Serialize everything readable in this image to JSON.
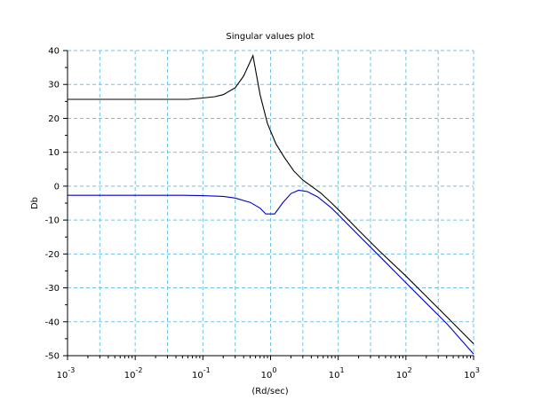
{
  "chart_data": {
    "type": "line",
    "title": "Singular values plot",
    "xlabel": "(Rd/sec)",
    "ylabel": "Db",
    "x_scale": "log",
    "xlim": [
      0.001,
      1000
    ],
    "ylim": [
      -50,
      40
    ],
    "grid": true,
    "x_ticks": [
      {
        "base": "10",
        "exp": "-3"
      },
      {
        "base": "10",
        "exp": "-2"
      },
      {
        "base": "10",
        "exp": "-1"
      },
      {
        "base": "10",
        "exp": "0"
      },
      {
        "base": "10",
        "exp": "1"
      },
      {
        "base": "10",
        "exp": "2"
      },
      {
        "base": "10",
        "exp": "3"
      }
    ],
    "y_ticks": [
      "40",
      "30",
      "20",
      "10",
      "0",
      "-10",
      "-20",
      "-30",
      "-40",
      "-50"
    ],
    "series": [
      {
        "color": "#000000",
        "points": [
          [
            0.001,
            25.6
          ],
          [
            0.003,
            25.6
          ],
          [
            0.01,
            25.6
          ],
          [
            0.03,
            25.6
          ],
          [
            0.06,
            25.6
          ],
          [
            0.1,
            26.0
          ],
          [
            0.15,
            26.4
          ],
          [
            0.2,
            27.0
          ],
          [
            0.3,
            29.0
          ],
          [
            0.4,
            32.5
          ],
          [
            0.55,
            38.5
          ],
          [
            0.7,
            27.0
          ],
          [
            0.9,
            18.5
          ],
          [
            1.2,
            12.5
          ],
          [
            1.6,
            8.5
          ],
          [
            2.2,
            4.5
          ],
          [
            3.0,
            1.8
          ],
          [
            4.0,
            0.0
          ],
          [
            5.5,
            -2.0
          ],
          [
            8.0,
            -5.0
          ],
          [
            12,
            -8.5
          ],
          [
            20,
            -13.0
          ],
          [
            40,
            -19.0
          ],
          [
            100,
            -26.5
          ],
          [
            200,
            -32.5
          ],
          [
            400,
            -38.5
          ],
          [
            1000,
            -46.5
          ]
        ]
      },
      {
        "color": "#0000cc",
        "points": [
          [
            0.001,
            -2.7
          ],
          [
            0.01,
            -2.7
          ],
          [
            0.05,
            -2.7
          ],
          [
            0.1,
            -2.8
          ],
          [
            0.2,
            -3.0
          ],
          [
            0.3,
            -3.5
          ],
          [
            0.5,
            -4.8
          ],
          [
            0.7,
            -6.5
          ],
          [
            0.85,
            -8.2
          ],
          [
            1.15,
            -8.2
          ],
          [
            1.5,
            -5.0
          ],
          [
            2.0,
            -2.2
          ],
          [
            2.6,
            -1.2
          ],
          [
            3.5,
            -1.6
          ],
          [
            5.0,
            -3.2
          ],
          [
            8.0,
            -6.5
          ],
          [
            12,
            -10.0
          ],
          [
            20,
            -14.5
          ],
          [
            40,
            -20.5
          ],
          [
            100,
            -28.5
          ],
          [
            200,
            -34.5
          ],
          [
            400,
            -40.5
          ],
          [
            1000,
            -49.5
          ]
        ]
      }
    ]
  }
}
